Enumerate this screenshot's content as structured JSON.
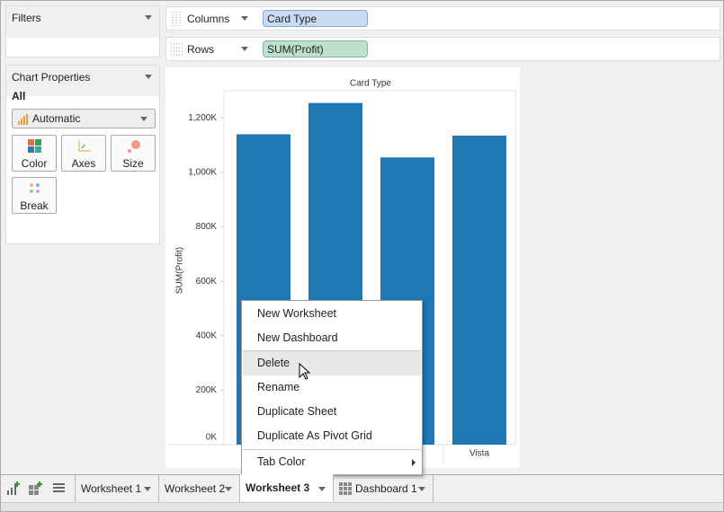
{
  "filters": {
    "title": "Filters"
  },
  "chart_properties": {
    "title": "Chart Properties",
    "scope": "All",
    "mark_type": "Automatic",
    "buttons": [
      "Color",
      "Axes",
      "Size",
      "Break"
    ]
  },
  "shelves": {
    "columns": {
      "label": "Columns",
      "pill": "Card Type"
    },
    "rows": {
      "label": "Rows",
      "pill": "SUM(Profit)"
    }
  },
  "chart_data": {
    "type": "bar",
    "title": "Card Type",
    "y_label": "SUM(Profit)",
    "categories": [
      null,
      null,
      null,
      "Vista"
    ],
    "values": [
      1140000,
      1255000,
      1055000,
      1135000
    ],
    "color": "#1f77b4",
    "ylim": [
      0,
      1300000
    ],
    "yticks": [
      {
        "value": 0,
        "label": "0K"
      },
      {
        "value": 200000,
        "label": "200K"
      },
      {
        "value": 400000,
        "label": "400K"
      },
      {
        "value": 600000,
        "label": "600K"
      },
      {
        "value": 800000,
        "label": "800K"
      },
      {
        "value": 1000000,
        "label": "1,000K"
      },
      {
        "value": 1200000,
        "label": "1,200K"
      }
    ],
    "grid": false
  },
  "context_menu": {
    "items": [
      "New Worksheet",
      "New Dashboard",
      "Delete",
      "Rename",
      "Duplicate Sheet",
      "Duplicate As Pivot Grid",
      "Tab Color"
    ]
  },
  "tabs": [
    "Worksheet 1",
    "Worksheet 2",
    "Worksheet 3",
    "Dashboard 1"
  ]
}
